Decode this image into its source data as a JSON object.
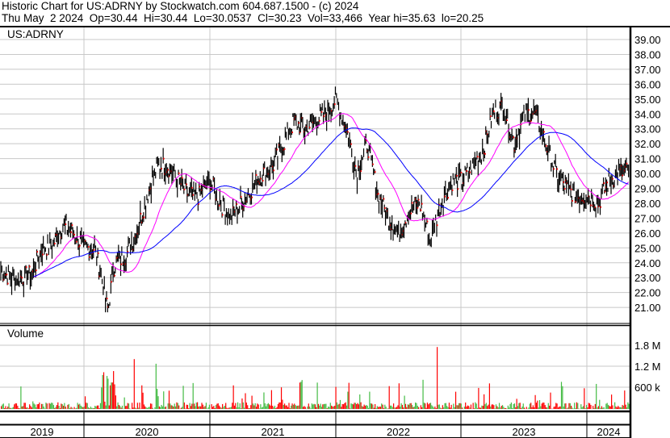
{
  "header": {
    "title": "Historic Chart for US:ADRNY by Stockwatch.com 604.687.1500 - (c) 2024",
    "quote": "Thu May  2 2024  Op=30.44  Hi=30.44  Lo=30.0537  Cl=30.23  Vol=33,466  Year hi=35.63  lo=20.25"
  },
  "colors": {
    "price": "#000000",
    "up_tick": "#ff0000",
    "ma_short": "#ff00ff",
    "ma_long": "#0000ff",
    "vol_up": "#44bb44",
    "vol_down": "#ff0000",
    "grid": "#c8c8c8"
  },
  "chart_data": [
    {
      "type": "line",
      "title": "US:ADRNY",
      "symbol": "US:ADRNY",
      "grid": true,
      "ylim": [
        20,
        40
      ],
      "y_ticks": [
        "39.00",
        "38.00",
        "37.00",
        "36.00",
        "35.00",
        "34.00",
        "33.00",
        "32.00",
        "31.00",
        "30.00",
        "29.00",
        "28.00",
        "27.00",
        "26.00",
        "25.00",
        "24.00",
        "23.00",
        "22.00",
        "21.00"
      ],
      "x_ticks": [
        "2019",
        "2020",
        "2021",
        "2022",
        "2023",
        "2024"
      ],
      "series": [
        {
          "kind": "ohlc",
          "dates": [
            "2019-05",
            "2019-06",
            "2019-07",
            "2019-08",
            "2019-09",
            "2019-10",
            "2019-11",
            "2019-12",
            "2020-01",
            "2020-02",
            "2020-03",
            "2020-04",
            "2020-05",
            "2020-06",
            "2020-07",
            "2020-08",
            "2020-09",
            "2020-10",
            "2020-11",
            "2020-12",
            "2021-01",
            "2021-02",
            "2021-03",
            "2021-04",
            "2021-05",
            "2021-06",
            "2021-07",
            "2021-08",
            "2021-09",
            "2021-10",
            "2021-11",
            "2021-12",
            "2022-01",
            "2022-02",
            "2022-03",
            "2022-04",
            "2022-05",
            "2022-06",
            "2022-07",
            "2022-08",
            "2022-09",
            "2022-10",
            "2022-11",
            "2022-12",
            "2023-01",
            "2023-02",
            "2023-03",
            "2023-04",
            "2023-05",
            "2023-06",
            "2023-07",
            "2023-08",
            "2023-09",
            "2023-10",
            "2023-11",
            "2023-12",
            "2024-01",
            "2024-02",
            "2024-03",
            "2024-04",
            "2024-05"
          ],
          "close": [
            23.5,
            23.0,
            23.0,
            23.2,
            25.0,
            25.2,
            26.5,
            26.0,
            25.0,
            25.0,
            22.0,
            24.0,
            24.5,
            26.0,
            28.5,
            30.5,
            30.5,
            29.5,
            28.5,
            28.5,
            29.5,
            28.0,
            27.0,
            28.0,
            29.0,
            30.0,
            30.5,
            32.0,
            33.5,
            33.0,
            33.5,
            34.0,
            35.0,
            33.0,
            30.0,
            32.0,
            28.5,
            27.0,
            26.0,
            27.5,
            28.0,
            25.5,
            28.0,
            29.5,
            29.5,
            30.5,
            31.5,
            34.0,
            34.5,
            32.0,
            34.0,
            34.0,
            32.0,
            30.0,
            29.0,
            28.5,
            28.5,
            28.0,
            29.5,
            30.0,
            30.2
          ]
        }
      ]
    },
    {
      "type": "bar",
      "title": "Volume",
      "y_ticks": [
        "1.8 M",
        "1.2 M",
        "600 k"
      ],
      "ylim": [
        0,
        2400000
      ]
    }
  ]
}
